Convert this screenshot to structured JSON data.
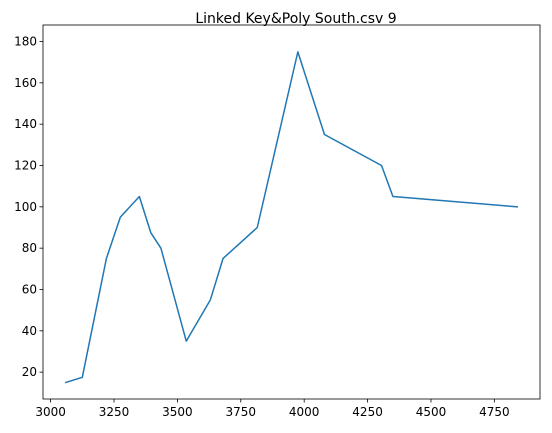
{
  "chart_data": {
    "type": "line",
    "title": "Linked Key&Poly South.csv 9",
    "xlabel": "",
    "ylabel": "",
    "xlim": [
      2970,
      4930
    ],
    "ylim": [
      7,
      188
    ],
    "xticks": [
      3000,
      3250,
      3500,
      3750,
      4000,
      4250,
      4500,
      4750
    ],
    "yticks": [
      20,
      40,
      60,
      80,
      100,
      120,
      140,
      160,
      180
    ],
    "grid": false,
    "legend": "none",
    "series": [
      {
        "color": "#1f77b4",
        "x": [
          3060,
          3125,
          3220,
          3275,
          3350,
          3395,
          3435,
          3535,
          3630,
          3680,
          3815,
          3975,
          4080,
          4305,
          4350,
          4840
        ],
        "y": [
          15,
          17.5,
          75,
          95,
          105,
          87.5,
          80,
          35,
          55,
          75,
          90,
          175,
          135,
          120,
          105,
          100
        ]
      }
    ]
  }
}
